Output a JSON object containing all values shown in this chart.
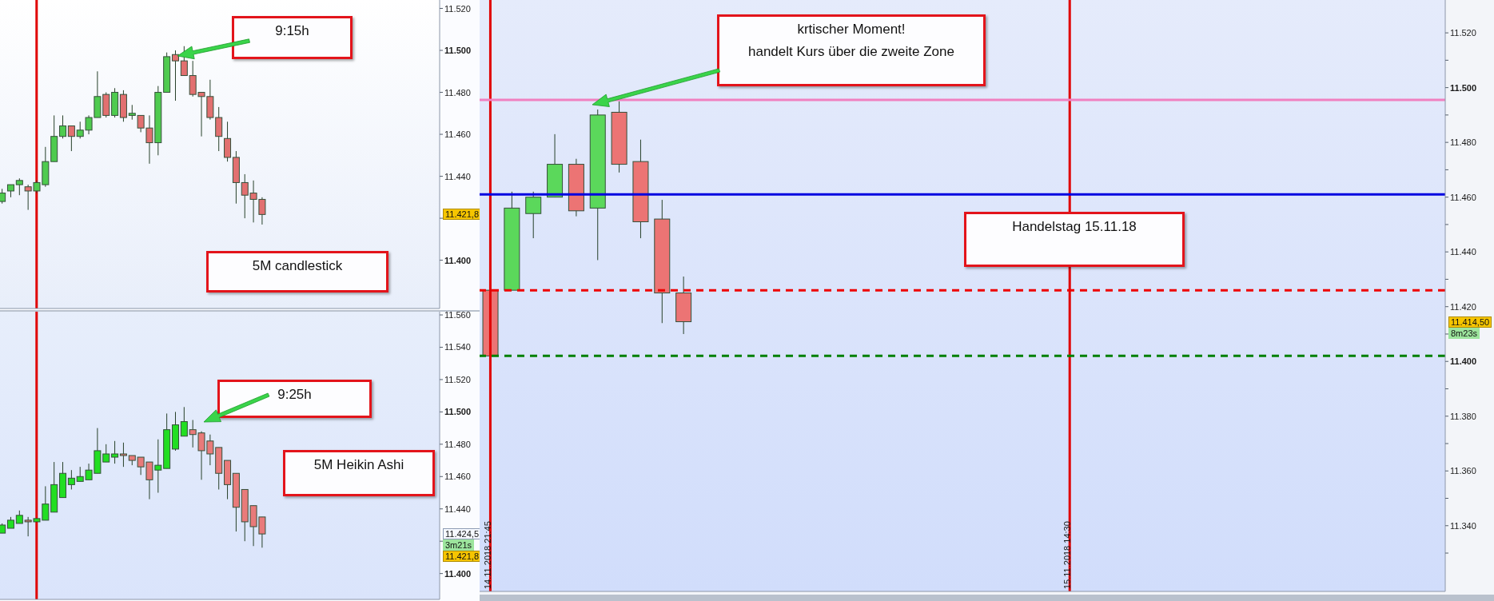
{
  "chart_data": [
    {
      "type": "candlestick",
      "categories": [
        null,
        null,
        null,
        null,
        null,
        null,
        null,
        null,
        null,
        null,
        null,
        null,
        null,
        null,
        null,
        null,
        null,
        null,
        null,
        null,
        null,
        null,
        null,
        null,
        null,
        null,
        null,
        null,
        null,
        null,
        null,
        null,
        null,
        null,
        null,
        null,
        null,
        null,
        null,
        null,
        null,
        null,
        null,
        null,
        null,
        null,
        null,
        null,
        null,
        null,
        null
      ],
      "ohlc": [
        [
          11428,
          11434,
          11427,
          11432
        ],
        [
          11433,
          11436,
          11430,
          11436
        ],
        [
          11436,
          11439,
          11431,
          11438
        ],
        [
          11435,
          11436,
          11424,
          11433
        ],
        [
          11433,
          11438,
          11432,
          11437
        ],
        [
          11436,
          11454,
          11435,
          11447
        ],
        [
          11447,
          11469,
          11447,
          11459
        ],
        [
          11459,
          11469,
          11458,
          11464
        ],
        [
          11464,
          11464,
          11452,
          11459
        ],
        [
          11459,
          11466,
          11458,
          11462
        ],
        [
          11462,
          11469,
          11460,
          11468
        ],
        [
          11468,
          11490,
          11468,
          11478
        ],
        [
          11479,
          11480,
          11468,
          11469
        ],
        [
          11469,
          11482,
          11468,
          11480
        ],
        [
          11479,
          11481,
          11466,
          11468
        ],
        [
          11469,
          11474,
          11467,
          11470
        ],
        [
          11469,
          11469,
          11461,
          11463
        ],
        [
          11463,
          11469,
          11446,
          11456
        ],
        [
          11456,
          11483,
          11450,
          11480
        ],
        [
          11480,
          11499,
          11480,
          11497
        ],
        [
          11498,
          11500,
          11476,
          11495
        ],
        [
          11495,
          11502,
          11488,
          11488
        ],
        [
          11488,
          11495,
          11478,
          11479
        ],
        [
          11480,
          11480,
          11459,
          11478
        ],
        [
          11478,
          11486,
          11467,
          11468
        ],
        [
          11468,
          11473,
          11452,
          11459
        ],
        [
          11458,
          11466,
          11447,
          11449
        ],
        [
          11449,
          11452,
          11427,
          11437
        ],
        [
          11437,
          11441,
          11420,
          11431
        ],
        [
          11432,
          11438,
          11418,
          11429
        ],
        [
          11429,
          11430,
          11417,
          11421.8
        ],
        null,
        null,
        null,
        null,
        null,
        null,
        null,
        null,
        null,
        null,
        null,
        null,
        null,
        null,
        null,
        null,
        null,
        null,
        null,
        null
      ],
      "colors": [
        "#4fcb4f",
        "#4fcb4f",
        "#4fcb4f",
        "#e27070",
        "#4fcb4f",
        "#4fcb4f",
        "#4fcb4f",
        "#4fcb4f",
        "#e27070",
        "#4fcb4f",
        "#4fcb4f",
        "#4fcb4f",
        "#e27070",
        "#4fcb4f",
        "#e27070",
        "#4fcb4f",
        "#e27070",
        "#e27070",
        "#4fcb4f",
        "#4fcb4f",
        "#e27070",
        "#e27070",
        "#e27070",
        "#e27070",
        "#e27070",
        "#e27070",
        "#e27070",
        "#e27070",
        "#e27070",
        "#e27070",
        "#e27070",
        null,
        null,
        null,
        null,
        null,
        null,
        null,
        null,
        null,
        null,
        null,
        null,
        null,
        null,
        null,
        null,
        null,
        null,
        null,
        null
      ],
      "ylim": [
        11377,
        11524
      ],
      "yticks": [
        {
          "value": 11400,
          "label": "11.400"
        },
        {
          "value": 11420,
          "label": null
        },
        {
          "value": 11440,
          "label": "11.440"
        },
        {
          "value": 11460,
          "label": "11.460"
        },
        {
          "value": 11480,
          "label": "11.480"
        },
        {
          "value": 11500,
          "label": "11.500"
        },
        {
          "value": 11520,
          "label": "11.520"
        }
      ],
      "tick_labels": "y",
      "annotations": [
        "9:15h",
        "5M candlestick",
        "11.421,8"
      ]
    },
    {
      "type": "candlestick",
      "categories": [
        null,
        null,
        null,
        null,
        null,
        null,
        null,
        null,
        null,
        null,
        null,
        null,
        null,
        null,
        null,
        null,
        null,
        null,
        null,
        null,
        null,
        null,
        null,
        null,
        null,
        null,
        null,
        null,
        null,
        null,
        null,
        null,
        null,
        null,
        null,
        null,
        null,
        null,
        null,
        null,
        null,
        null,
        null,
        null,
        null,
        null,
        null,
        null,
        null,
        null,
        null
      ],
      "ohlc": [
        [
          11425,
          11431,
          11425,
          11430
        ],
        [
          11428,
          11435,
          11428,
          11433
        ],
        [
          11431,
          11439,
          11431,
          11436
        ],
        [
          11433,
          11435,
          11423,
          11432
        ],
        [
          11432,
          11434,
          11432,
          11434
        ],
        [
          11433,
          11454,
          11433,
          11443
        ],
        [
          11438,
          11469,
          11438,
          11455
        ],
        [
          11447,
          11469,
          11447,
          11462
        ],
        [
          11455,
          11464,
          11452,
          11459
        ],
        [
          11457,
          11466,
          11457,
          11460
        ],
        [
          11458,
          11468,
          11458,
          11464
        ],
        [
          11462,
          11490,
          11462,
          11476
        ],
        [
          11469,
          11480,
          11469,
          11474
        ],
        [
          11472,
          11482,
          11468,
          11474
        ],
        [
          11474,
          11481,
          11466,
          11473
        ],
        [
          11473,
          11473,
          11467,
          11470
        ],
        [
          11472,
          11472,
          11461,
          11466
        ],
        [
          11469,
          11469,
          11446,
          11458
        ],
        [
          11464,
          11483,
          11450,
          11467
        ],
        [
          11465,
          11499,
          11465,
          11489
        ],
        [
          11477,
          11500,
          11476,
          11492
        ],
        [
          11485,
          11503,
          11485,
          11494
        ],
        [
          11489,
          11495,
          11478,
          11486
        ],
        [
          11487,
          11488,
          11458,
          11476
        ],
        [
          11482,
          11486,
          11467,
          11474
        ],
        [
          11478,
          11478,
          11452,
          11462
        ],
        [
          11470,
          11470,
          11446,
          11455
        ],
        [
          11462,
          11462,
          11426,
          11441
        ],
        [
          11452,
          11452,
          11420,
          11432
        ],
        [
          11442,
          11442,
          11417,
          11429
        ],
        [
          11435,
          11435,
          11416,
          11424.5
        ],
        null,
        null,
        null,
        null,
        null,
        null,
        null,
        null,
        null,
        null,
        null,
        null,
        null,
        null,
        null,
        null,
        null,
        null,
        null,
        null
      ],
      "colors": [
        "#22de22",
        "#22de22",
        "#22de22",
        "#e97a7a",
        "#22de22",
        "#22de22",
        "#22de22",
        "#22de22",
        "#22de22",
        "#22de22",
        "#22de22",
        "#22de22",
        "#22de22",
        "#22de22",
        "#e97a7a",
        "#e97a7a",
        "#e97a7a",
        "#e97a7a",
        "#22de22",
        "#22de22",
        "#22de22",
        "#22de22",
        "#e97a7a",
        "#e97a7a",
        "#e97a7a",
        "#e97a7a",
        "#e97a7a",
        "#e97a7a",
        "#e97a7a",
        "#e97a7a",
        "#e97a7a",
        null,
        null,
        null,
        null,
        null,
        null,
        null,
        null,
        null,
        null,
        null,
        null,
        null,
        null,
        null,
        null,
        null,
        null,
        null,
        null
      ],
      "ylim": [
        11384,
        11562
      ],
      "yticks": [
        {
          "value": 11400,
          "label": "11.400"
        },
        {
          "value": 11420,
          "label": null
        },
        {
          "value": 11440,
          "label": "11.440"
        },
        {
          "value": 11460,
          "label": "11.460"
        },
        {
          "value": 11480,
          "label": "11.480"
        },
        {
          "value": 11500,
          "label": "11.500"
        },
        {
          "value": 11520,
          "label": "11.520"
        },
        {
          "value": 11540,
          "label": "11.540"
        },
        {
          "value": 11560,
          "label": "11.560"
        }
      ],
      "tick_labels": "y",
      "annotations": [
        "9:25h",
        "5M Heikin Ashi",
        "11.424,5",
        "3m21s",
        "11.421,8"
      ]
    },
    {
      "type": "candlestick",
      "categories": [
        "14.11.2018 21:45",
        null,
        null,
        null,
        null,
        null,
        null,
        null,
        null,
        null,
        null,
        null,
        null,
        null,
        null,
        null,
        null,
        null,
        null,
        null,
        null,
        null,
        null,
        null,
        null,
        null,
        null,
        "15.11.2018 14:30",
        null,
        null,
        null,
        null,
        null,
        null,
        null,
        null,
        null,
        null,
        null,
        null,
        null,
        null,
        null,
        null,
        null
      ],
      "ohlc": [
        [
          11426,
          11426,
          11402,
          11402
        ],
        [
          11426,
          11462,
          11426,
          11456
        ],
        [
          11454,
          11462,
          11445,
          11460
        ],
        [
          11460,
          11483,
          11460,
          11472
        ],
        [
          11472,
          11474,
          11453,
          11455
        ],
        [
          11456,
          11492,
          11437,
          11490
        ],
        [
          11491,
          11495,
          11469,
          11472
        ],
        [
          11473,
          11481,
          11445,
          11451
        ],
        [
          11452,
          11459,
          11414,
          11425
        ],
        [
          11425,
          11431,
          11410,
          11414.5
        ],
        null,
        null,
        null,
        null,
        null,
        null,
        null,
        null,
        null,
        null,
        null,
        null,
        null,
        null,
        null,
        null,
        null,
        null,
        null,
        null,
        null,
        null,
        null,
        null,
        null,
        null,
        null,
        null,
        null,
        null,
        null,
        null,
        null,
        null,
        null
      ],
      "colors": [
        "#ec7474",
        "#5bd85b",
        "#5bd85b",
        "#5bd85b",
        "#ec7474",
        "#5bd85b",
        "#ec7474",
        "#ec7474",
        "#ec7474",
        "#ec7474",
        null,
        null,
        null,
        null,
        null,
        null,
        null,
        null,
        null,
        null,
        null,
        null,
        null,
        null,
        null,
        null,
        null,
        null,
        null,
        null,
        null,
        null,
        null,
        null,
        null,
        null,
        null,
        null,
        null,
        null,
        null,
        null,
        null,
        null,
        null
      ],
      "ylim": [
        11316,
        11532
      ],
      "yticks": [
        {
          "value": 11330,
          "label": null
        },
        {
          "value": 11340,
          "label": "11.340"
        },
        {
          "value": 11350,
          "label": null
        },
        {
          "value": 11360,
          "label": "11.360"
        },
        {
          "value": 11370,
          "label": null
        },
        {
          "value": 11380,
          "label": "11.380"
        },
        {
          "value": 11390,
          "label": null
        },
        {
          "value": 11400,
          "label": "11.400"
        },
        {
          "value": 11410,
          "label": null
        },
        {
          "value": 11420,
          "label": "11.420"
        },
        {
          "value": 11430,
          "label": null
        },
        {
          "value": 11440,
          "label": "11.440"
        },
        {
          "value": 11450,
          "label": null
        },
        {
          "value": 11460,
          "label": "11.460"
        },
        {
          "value": 11470,
          "label": null
        },
        {
          "value": 11480,
          "label": "11.480"
        },
        {
          "value": 11490,
          "label": null
        },
        {
          "value": 11500,
          "label": "11.500"
        },
        {
          "value": 11510,
          "label": null
        },
        {
          "value": 11520,
          "label": "11.520"
        }
      ],
      "ref_lines": [
        {
          "axis": "x",
          "value": "14.11.2018 21:45",
          "color": "#e00000"
        },
        {
          "axis": "x",
          "value": "15.11.2018 14:30",
          "color": "#e00000"
        },
        {
          "axis": "y",
          "value": 11495.5,
          "color": "#f080c0"
        },
        {
          "axis": "y",
          "value": 11461,
          "color": "#0000e0"
        },
        {
          "axis": "y",
          "value": 11426,
          "color": "#ee0000",
          "line_style": "dashed"
        },
        {
          "axis": "y",
          "value": 11402,
          "color": "#008000",
          "line_style": "dashed"
        }
      ],
      "annotations": [
        "krtischer Moment!\nhandelt Kurs über die zweite Zone",
        "Handelstag 15.11.18",
        "11.414,50",
        "8m23s"
      ]
    }
  ]
}
